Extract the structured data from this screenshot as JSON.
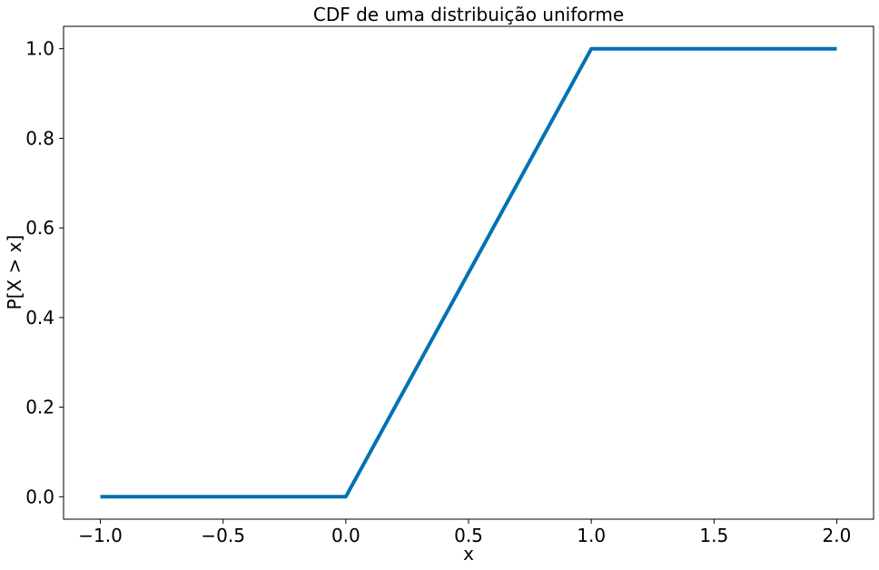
{
  "chart_data": {
    "type": "line",
    "title": "CDF de uma distribuição uniforme",
    "xlabel": "x",
    "ylabel": "P[X > x]",
    "xlim": [
      -1.15,
      2.15
    ],
    "ylim": [
      -0.05,
      1.05
    ],
    "grid": false,
    "legend": "none",
    "x_ticks": [
      -1.0,
      -0.5,
      0.0,
      0.5,
      1.0,
      1.5,
      2.0
    ],
    "x_tick_labels": [
      "−1.0",
      "−0.5",
      "0.0",
      "0.5",
      "1.0",
      "1.5",
      "2.0"
    ],
    "y_ticks": [
      0.0,
      0.2,
      0.4,
      0.6,
      0.8,
      1.0
    ],
    "y_tick_labels": [
      "0.0",
      "0.2",
      "0.4",
      "0.6",
      "0.8",
      "1.0"
    ],
    "series": [
      {
        "color": "#0072b2",
        "x": [
          -1.0,
          0.0,
          1.0,
          2.0
        ],
        "y": [
          0.0,
          0.0,
          1.0,
          1.0
        ]
      }
    ]
  }
}
